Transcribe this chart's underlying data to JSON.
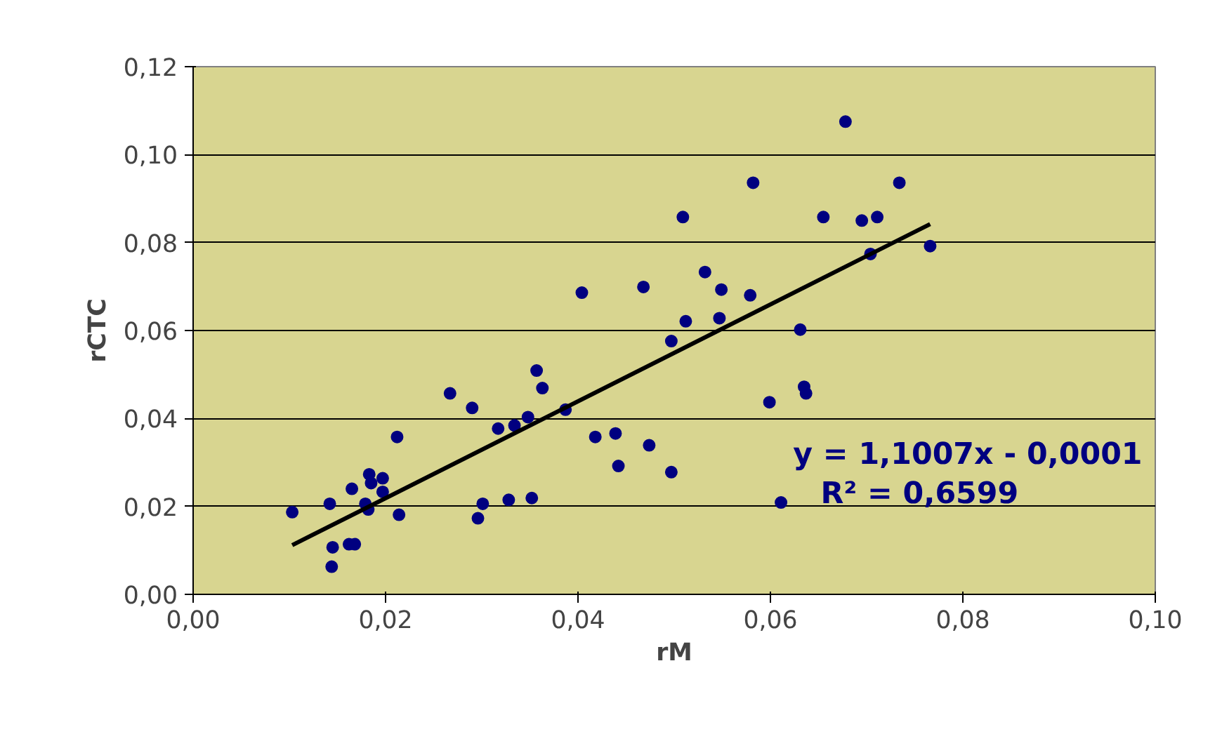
{
  "chart_data": {
    "type": "scatter",
    "xlabel": "rM",
    "ylabel": "rCTC",
    "xlim": [
      0,
      0.1
    ],
    "ylim": [
      0,
      0.12
    ],
    "xticks": [
      {
        "value": 0,
        "label": "0,00"
      },
      {
        "value": 0.02,
        "label": "0,02"
      },
      {
        "value": 0.04,
        "label": "0,04"
      },
      {
        "value": 0.06,
        "label": "0,06"
      },
      {
        "value": 0.08,
        "label": "0,08"
      },
      {
        "value": 0.1,
        "label": "0,10"
      }
    ],
    "yticks": [
      {
        "value": 0,
        "label": "0,00"
      },
      {
        "value": 0.02,
        "label": "0,02"
      },
      {
        "value": 0.04,
        "label": "0,04"
      },
      {
        "value": 0.06,
        "label": "0,06"
      },
      {
        "value": 0.08,
        "label": "0,08"
      },
      {
        "value": 0.1,
        "label": "0,10"
      },
      {
        "value": 0.12,
        "label": "0,12"
      }
    ],
    "grid": "y",
    "marker": "circle",
    "series": [
      {
        "color": "#000080",
        "x": [
          0.0103,
          0.0142,
          0.0145,
          0.0144,
          0.0165,
          0.0162,
          0.0168,
          0.0179,
          0.0183,
          0.0185,
          0.0197,
          0.0197,
          0.0182,
          0.0212,
          0.0214,
          0.0267,
          0.029,
          0.0301,
          0.0296,
          0.0317,
          0.0334,
          0.0348,
          0.0357,
          0.0363,
          0.0387,
          0.0404,
          0.0418,
          0.0439,
          0.0442,
          0.0468,
          0.0474,
          0.0497,
          0.0497,
          0.0509,
          0.0512,
          0.0532,
          0.0549,
          0.0547,
          0.0579,
          0.0582,
          0.0599,
          0.0611,
          0.0631,
          0.0635,
          0.0637,
          0.0655,
          0.0328,
          0.0352,
          0.0678,
          0.0695,
          0.0711,
          0.0734,
          0.0704,
          0.0766
        ],
        "values": [
          0.0187,
          0.0206,
          0.0107,
          0.0063,
          0.024,
          0.0114,
          0.0114,
          0.0206,
          0.0273,
          0.0253,
          0.0264,
          0.0233,
          0.0193,
          0.0358,
          0.0181,
          0.0457,
          0.0424,
          0.0206,
          0.0173,
          0.0377,
          0.0384,
          0.0403,
          0.0509,
          0.0469,
          0.042,
          0.0686,
          0.0358,
          0.0366,
          0.0292,
          0.0699,
          0.0339,
          0.0278,
          0.0576,
          0.0858,
          0.0621,
          0.0733,
          0.0693,
          0.0628,
          0.068,
          0.0936,
          0.0437,
          0.0209,
          0.0602,
          0.0472,
          0.0457,
          0.0858,
          0.0215,
          0.0219,
          0.1075,
          0.085,
          0.0858,
          0.0936,
          0.0774,
          0.0792
        ]
      },
      {
        "type": "line",
        "color": "#000000",
        "marker": "none",
        "line_style": "solid",
        "x": [
          0.0103,
          0.0766
        ],
        "values": [
          0.0112,
          0.0842
        ]
      }
    ],
    "annotations": [
      "y = 1,1007x - 0,0001",
      "R² = 0,6599"
    ]
  }
}
